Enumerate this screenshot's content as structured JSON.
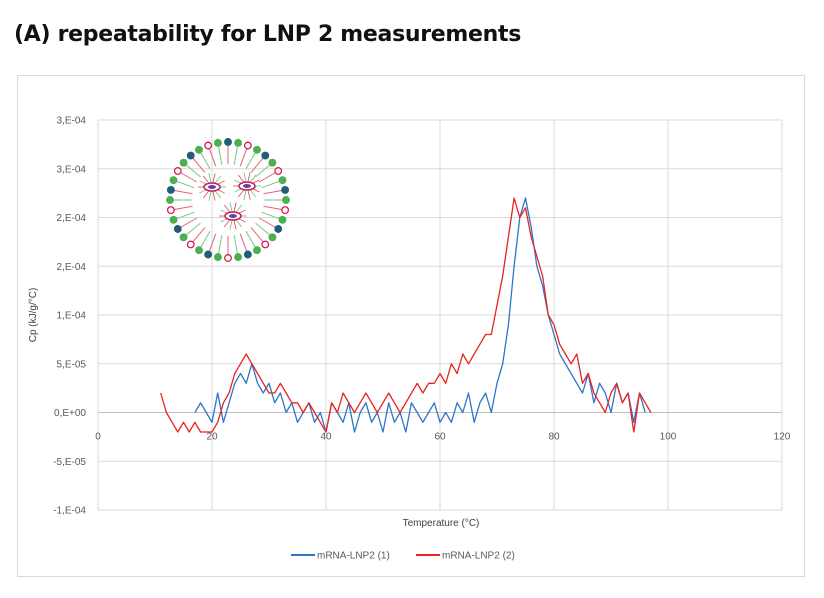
{
  "title": "(A) repeatability for LNP 2 measurements",
  "chart_data": {
    "type": "line",
    "title": "",
    "xlabel": "Temperature (°C)",
    "ylabel": "Cp (kJ/g/°C)",
    "xlim": [
      0,
      120
    ],
    "ylim": [
      -0.0001,
      0.0003
    ],
    "xticks": [
      0,
      20,
      40,
      60,
      80,
      100,
      120
    ],
    "xtick_labels": [
      "0",
      "20",
      "40",
      "60",
      "80",
      "100",
      "120"
    ],
    "yticks": [
      0.0003,
      0.00025,
      0.0002,
      0.00015,
      0.0001,
      5e-05,
      0,
      -5e-05,
      -0.0001
    ],
    "ytick_labels": [
      "3,E-04",
      "3,E-04",
      "2,E-04",
      "2,E-04",
      "1,E-04",
      "5,E-05",
      "0,E+00",
      "-5,E-05",
      "-1,E-04"
    ],
    "grid": true,
    "legend_position": "bottom",
    "inset_image": "lipid-nanoparticle-illustration",
    "series": [
      {
        "name": "mRNA-LNP2 (1)",
        "color": "#2e75c8",
        "x": [
          17,
          18,
          19,
          20,
          21,
          22,
          23,
          24,
          25,
          26,
          27,
          28,
          29,
          30,
          31,
          32,
          33,
          34,
          35,
          36,
          37,
          38,
          39,
          40,
          41,
          42,
          43,
          44,
          45,
          46,
          47,
          48,
          49,
          50,
          51,
          52,
          53,
          54,
          55,
          56,
          57,
          58,
          59,
          60,
          61,
          62,
          63,
          64,
          65,
          66,
          67,
          68,
          69,
          70,
          71,
          72,
          73,
          74,
          75,
          76,
          77,
          78,
          79,
          80,
          81,
          82,
          83,
          84,
          85,
          86,
          87,
          88,
          89,
          90,
          91,
          92,
          93,
          94,
          95,
          96
        ],
        "y": [
          0,
          1e-05,
          0,
          -1e-05,
          2e-05,
          -1e-05,
          1e-05,
          3e-05,
          4e-05,
          3e-05,
          5e-05,
          3e-05,
          2e-05,
          3e-05,
          1e-05,
          2e-05,
          0,
          1e-05,
          -1e-05,
          0,
          1e-05,
          -1e-05,
          0,
          -2e-05,
          1e-05,
          0,
          -1e-05,
          1e-05,
          -2e-05,
          0,
          1e-05,
          -1e-05,
          0,
          -2e-05,
          1e-05,
          -1e-05,
          0,
          -2e-05,
          1e-05,
          0,
          -1e-05,
          0,
          1e-05,
          -1e-05,
          0,
          -1e-05,
          1e-05,
          0,
          2e-05,
          -1e-05,
          1e-05,
          2e-05,
          0,
          3e-05,
          5e-05,
          9e-05,
          0.00015,
          0.0002,
          0.00022,
          0.00019,
          0.00015,
          0.00013,
          0.0001,
          8e-05,
          6e-05,
          5e-05,
          4e-05,
          3e-05,
          2e-05,
          4e-05,
          1e-05,
          3e-05,
          2e-05,
          0,
          3e-05,
          1e-05,
          2e-05,
          -1e-05,
          2e-05,
          0
        ]
      },
      {
        "name": "mRNA-LNP2 (2)",
        "color": "#e8231f",
        "x": [
          11,
          12,
          13,
          14,
          15,
          16,
          17,
          18,
          19,
          20,
          21,
          22,
          23,
          24,
          25,
          26,
          27,
          28,
          29,
          30,
          31,
          32,
          33,
          34,
          35,
          36,
          37,
          38,
          39,
          40,
          41,
          42,
          43,
          44,
          45,
          46,
          47,
          48,
          49,
          50,
          51,
          52,
          53,
          54,
          55,
          56,
          57,
          58,
          59,
          60,
          61,
          62,
          63,
          64,
          65,
          66,
          67,
          68,
          69,
          70,
          71,
          72,
          73,
          74,
          75,
          76,
          77,
          78,
          79,
          80,
          81,
          82,
          83,
          84,
          85,
          86,
          87,
          88,
          89,
          90,
          91,
          92,
          93,
          94,
          95,
          96,
          97
        ],
        "y": [
          2e-05,
          0,
          -1e-05,
          -2e-05,
          -1e-05,
          -2e-05,
          -1e-05,
          -2e-05,
          -2e-05,
          -2e-05,
          -1e-05,
          1e-05,
          2e-05,
          4e-05,
          5e-05,
          6e-05,
          5e-05,
          4e-05,
          3e-05,
          2e-05,
          2e-05,
          3e-05,
          2e-05,
          1e-05,
          1e-05,
          0,
          1e-05,
          0,
          -1e-05,
          -2e-05,
          1e-05,
          0,
          2e-05,
          1e-05,
          0,
          1e-05,
          2e-05,
          1e-05,
          0,
          1e-05,
          2e-05,
          1e-05,
          0,
          1e-05,
          2e-05,
          3e-05,
          2e-05,
          3e-05,
          3e-05,
          4e-05,
          3e-05,
          5e-05,
          4e-05,
          6e-05,
          5e-05,
          6e-05,
          7e-05,
          8e-05,
          8e-05,
          0.00011,
          0.00014,
          0.00018,
          0.00022,
          0.0002,
          0.00021,
          0.00018,
          0.00016,
          0.00014,
          0.0001,
          9e-05,
          7e-05,
          6e-05,
          5e-05,
          6e-05,
          3e-05,
          4e-05,
          2e-05,
          1e-05,
          0,
          2e-05,
          3e-05,
          1e-05,
          2e-05,
          -2e-05,
          2e-05,
          1e-05,
          0
        ]
      }
    ]
  }
}
